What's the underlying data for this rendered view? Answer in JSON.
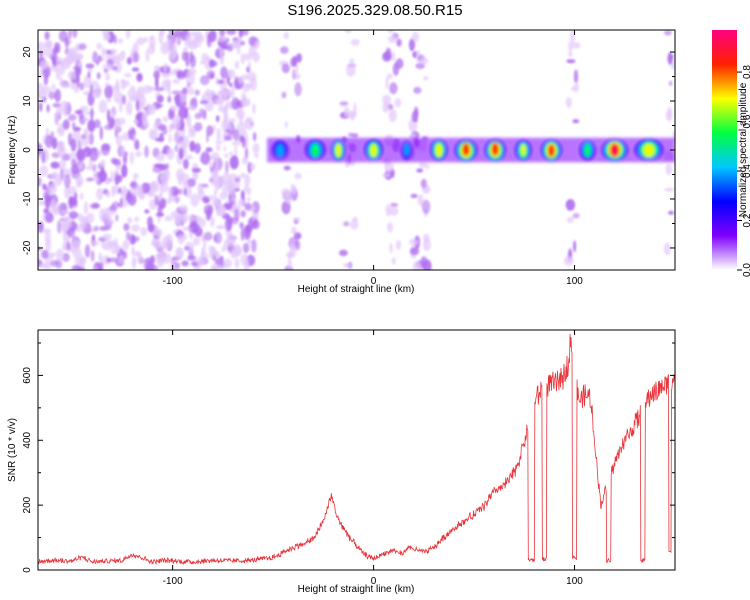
{
  "figure_title": "S196.2025.329.08.50.R15",
  "chart_data": [
    {
      "type": "heatmap",
      "title": "S196.2025.329.08.50.R15",
      "xlabel": "Height of straight line (km)",
      "ylabel": "Frequency (Hz)",
      "xlim": [
        -167,
        150
      ],
      "ylim": [
        -24.5,
        24.5
      ],
      "x_ticks": [
        -100,
        0,
        100
      ],
      "y_ticks": [
        -20,
        -10,
        0,
        10,
        20
      ],
      "colorbar": {
        "label": "Normalized spectral amplitude",
        "range": [
          0,
          0.97
        ],
        "ticks": [
          "0.0",
          "0.2",
          "0.4",
          "0.6",
          "0.8"
        ],
        "tick_values": [
          0.0,
          0.2,
          0.4,
          0.6,
          0.8
        ],
        "colormap": [
          "#ffffff",
          "#7f00ff",
          "#0000ff",
          "#00c8ff",
          "#00ff40",
          "#ffff00",
          "#ff2000",
          "#ff0080"
        ]
      },
      "colors": {
        "background_noise": "#b070f0",
        "weak_noise": "#e2c8fb"
      },
      "signal_band": {
        "freq_center": 0,
        "x_start": -53,
        "x_end": 150
      },
      "signal_segments": [
        {
          "x_start": -53,
          "x_end": -40,
          "peak": 0.45
        },
        {
          "x_start": -36,
          "x_end": -22,
          "peak": 0.6
        },
        {
          "x_start": -22,
          "x_end": -13,
          "peak": 0.8
        },
        {
          "x_start": -6,
          "x_end": 6,
          "peak": 0.75
        },
        {
          "x_start": 12,
          "x_end": 21,
          "peak": 0.45
        },
        {
          "x_start": 27,
          "x_end": 38,
          "peak": 0.8
        },
        {
          "x_start": 39,
          "x_end": 53,
          "peak": 0.9
        },
        {
          "x_start": 54,
          "x_end": 67,
          "peak": 0.92
        },
        {
          "x_start": 69,
          "x_end": 80,
          "peak": 0.7
        },
        {
          "x_start": 82,
          "x_end": 95,
          "peak": 0.9
        },
        {
          "x_start": 101,
          "x_end": 112,
          "peak": 0.6
        },
        {
          "x_start": 112,
          "x_end": 128,
          "peak": 0.95
        },
        {
          "x_start": 128,
          "x_end": 146,
          "peak": 0.8
        }
      ],
      "noise_regions": [
        {
          "x_start": -167,
          "x_end": -58,
          "density": 1.0
        },
        {
          "x_start": -45,
          "x_end": -37,
          "density": 0.5
        },
        {
          "x_start": -15,
          "x_end": -9,
          "density": 0.5
        },
        {
          "x_start": 6,
          "x_end": 13,
          "density": 0.55
        },
        {
          "x_start": 19,
          "x_end": 27,
          "density": 0.6
        },
        {
          "x_start": 97,
          "x_end": 101,
          "density": 0.5
        },
        {
          "x_start": 146,
          "x_end": 150,
          "density": 0.4
        }
      ]
    },
    {
      "type": "line",
      "xlabel": "Height of straight line (km)",
      "ylabel": "SNR (10 * v/v)",
      "xlim": [
        -167,
        150
      ],
      "ylim": [
        0,
        740
      ],
      "x_ticks": [
        -100,
        0,
        100
      ],
      "y_ticks": [
        0,
        200,
        400,
        600
      ],
      "color": "#e8343a",
      "series": [
        {
          "name": "SNR",
          "x": [
            -167,
            -160,
            -150,
            -145,
            -140,
            -130,
            -125,
            -120,
            -110,
            -105,
            -100,
            -90,
            -80,
            -70,
            -60,
            -55,
            -50,
            -45,
            -40,
            -35,
            -30,
            -25,
            -21,
            -18,
            -15,
            -12,
            -8,
            -5,
            -2,
            0,
            5,
            10,
            14,
            18,
            22,
            26,
            30,
            35,
            40,
            45,
            50,
            55,
            60,
            65,
            70,
            73,
            76,
            78,
            80,
            82,
            84,
            86,
            88,
            90,
            92,
            95,
            97,
            98,
            100,
            101,
            103,
            105,
            108,
            110,
            113,
            115,
            118,
            120,
            124,
            128,
            130,
            133,
            136,
            138,
            140,
            143,
            145,
            147,
            150
          ],
          "y": [
            25,
            30,
            28,
            40,
            25,
            28,
            30,
            50,
            25,
            30,
            28,
            25,
            30,
            28,
            30,
            35,
            38,
            55,
            70,
            80,
            95,
            150,
            230,
            160,
            130,
            100,
            70,
            50,
            40,
            35,
            50,
            60,
            50,
            70,
            60,
            55,
            70,
            100,
            130,
            150,
            170,
            200,
            240,
            260,
            300,
            350,
            420,
            470,
            520,
            540,
            560,
            570,
            580,
            570,
            580,
            600,
            650,
            720,
            500,
            560,
            520,
            540,
            530,
            400,
            200,
            240,
            300,
            330,
            390,
            430,
            450,
            480,
            520,
            540,
            550,
            560,
            570,
            580,
            590
          ],
          "dropouts": [
            [
              77,
              80,
              30
            ],
            [
              84,
              86,
              35
            ],
            [
              99,
              101,
              40
            ],
            [
              116,
              118,
              30
            ],
            [
              133,
              135,
              30
            ],
            [
              147,
              148,
              60
            ]
          ]
        }
      ]
    }
  ]
}
